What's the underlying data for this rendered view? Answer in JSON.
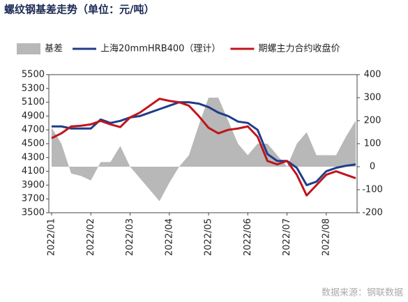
{
  "title": "螺纹钢基差走势（单位：元/吨）",
  "source": "数据来源：钢联数据",
  "chart_data": {
    "type": "line",
    "categories": [
      "2022/01",
      null,
      null,
      null,
      "2022/02",
      null,
      null,
      null,
      "2022/03",
      null,
      null,
      null,
      "2022/04",
      null,
      null,
      null,
      "2022/05",
      null,
      null,
      null,
      "2022/06",
      null,
      null,
      null,
      "2022/07",
      null,
      null,
      null,
      "2022/08",
      null,
      null,
      null
    ],
    "series": [
      {
        "name": "基差",
        "type": "area",
        "axis": "y2",
        "color": "#b8b8b8",
        "values": [
          170,
          100,
          -30,
          -40,
          -60,
          20,
          20,
          90,
          0,
          -50,
          -100,
          -150,
          -70,
          0,
          50,
          180,
          300,
          300,
          200,
          100,
          50,
          100,
          100,
          50,
          0,
          100,
          150,
          50,
          50,
          50,
          130,
          200
        ]
      },
      {
        "name": "上海20mmHRB400（理计）",
        "color": "#1f3d8a",
        "values": [
          4750,
          4750,
          4720,
          4720,
          4720,
          4850,
          4800,
          4830,
          4880,
          4900,
          4950,
          5000,
          5050,
          5100,
          5100,
          5080,
          5030,
          4950,
          4900,
          4820,
          4800,
          4700,
          4350,
          4250,
          4250,
          4150,
          3900,
          3950,
          4100,
          4150,
          4180,
          4200
        ]
      },
      {
        "name": "期螺主力合约收盘价",
        "color": "#c0141c",
        "values": [
          4580,
          4650,
          4750,
          4760,
          4780,
          4830,
          4780,
          4740,
          4880,
          4950,
          5050,
          5150,
          5120,
          5100,
          5050,
          4900,
          4730,
          4650,
          4700,
          4720,
          4750,
          4600,
          4250,
          4200,
          4250,
          4050,
          3750,
          3900,
          4050,
          4100,
          4050,
          4000
        ]
      }
    ],
    "ylim": [
      3500,
      5500
    ],
    "yticks": [
      3500,
      3700,
      3900,
      4100,
      4300,
      4500,
      4700,
      4900,
      5100,
      5300,
      5500
    ],
    "y2lim": [
      -200,
      400
    ],
    "y2ticks": [
      -200,
      -100,
      0,
      100,
      200,
      300,
      400
    ],
    "grid": false
  }
}
